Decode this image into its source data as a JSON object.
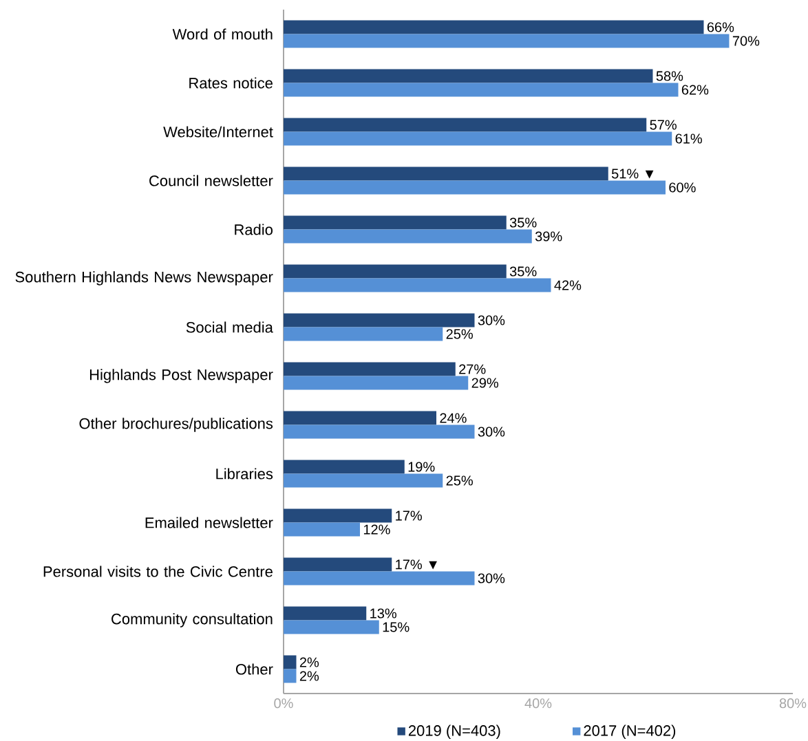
{
  "chart_data": {
    "type": "bar",
    "orientation": "horizontal",
    "legend": "bottom",
    "categories": [
      "Word of mouth",
      "Rates notice",
      "Website/Internet",
      "Council newsletter",
      "Radio",
      "Southern Highlands News Newspaper",
      "Social media",
      "Highlands Post Newspaper",
      "Other brochures/publications",
      "Libraries",
      "Emailed newsletter",
      "Personal visits to the Civic Centre",
      "Community consultation",
      "Other"
    ],
    "xlim": [
      0,
      80
    ],
    "xticks": [
      {
        "value": 0,
        "label": "0%"
      },
      {
        "value": 40,
        "label": "40%"
      },
      {
        "value": 80,
        "label": "80%"
      }
    ],
    "series": [
      {
        "name": "2019 (N=403)",
        "color": "#244a7c",
        "values": [
          66,
          58,
          57,
          51,
          35,
          35,
          30,
          27,
          24,
          19,
          17,
          17,
          13,
          2
        ],
        "value_labels": [
          "66%",
          "58%",
          "57%",
          "51% ▼",
          "35%",
          "35%",
          "30%",
          "27%",
          "24%",
          "19%",
          "17%",
          "17% ▼",
          "13%",
          "2%"
        ]
      },
      {
        "name": "2017 (N=402)",
        "color": "#5590d6",
        "values": [
          70,
          62,
          61,
          60,
          39,
          42,
          25,
          29,
          30,
          25,
          12,
          30,
          15,
          2
        ],
        "value_labels": [
          "70%",
          "62%",
          "61%",
          "60%",
          "39%",
          "42%",
          "25%",
          "29%",
          "30%",
          "25%",
          "12%",
          "30%",
          "15%",
          "2%"
        ]
      }
    ]
  }
}
